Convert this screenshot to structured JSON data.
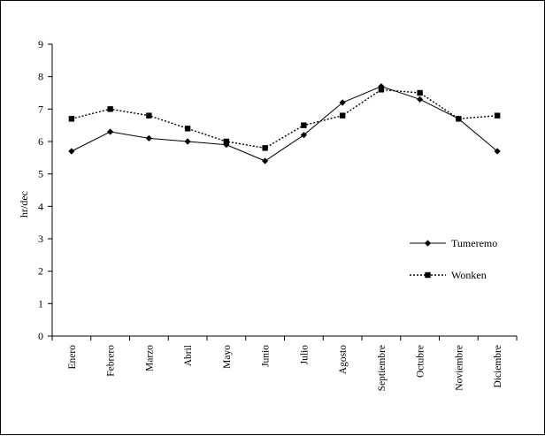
{
  "chart_data": {
    "type": "line",
    "title": "",
    "xlabel": "",
    "ylabel": "hr/dec",
    "ylim": [
      0,
      9
    ],
    "y_ticks": [
      "0",
      "1",
      "2",
      "3",
      "4",
      "5",
      "6",
      "7",
      "8",
      "9"
    ],
    "grid": false,
    "legend_position": "right",
    "categories": [
      "Enero",
      "Febrero",
      "Marzo",
      "Abril",
      "Mayo",
      "Junio",
      "Julio",
      "Agosto",
      "Septiembre",
      "Octubre",
      "Noviembre",
      "Diciembre"
    ],
    "series": [
      {
        "name": "Tumeremo",
        "marker": "diamond",
        "line_style": "solid",
        "color": "#000000",
        "values": [
          5.7,
          6.3,
          6.1,
          6.0,
          5.9,
          5.4,
          6.2,
          7.2,
          7.7,
          7.3,
          6.7,
          5.7
        ]
      },
      {
        "name": "Wonken",
        "marker": "square",
        "line_style": "dotted",
        "color": "#000000",
        "values": [
          6.7,
          7.0,
          6.8,
          6.4,
          6.0,
          5.8,
          6.5,
          6.8,
          7.6,
          7.5,
          6.7,
          6.8
        ]
      }
    ]
  }
}
